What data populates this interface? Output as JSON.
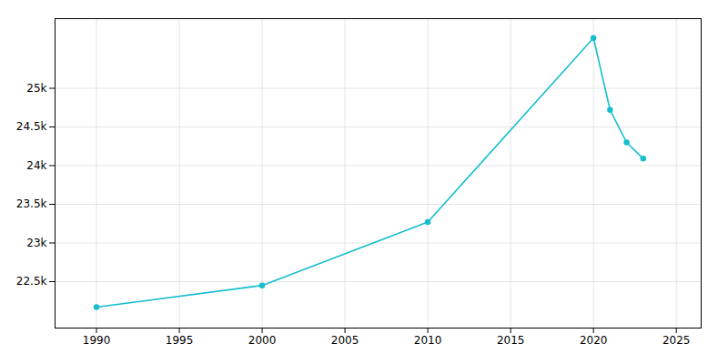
{
  "chart_data": {
    "type": "line",
    "x": [
      1990,
      2000,
      2010,
      2020,
      2021,
      2022,
      2023
    ],
    "values": [
      22170,
      22451,
      23270,
      25650,
      24720,
      24300,
      24090
    ],
    "color": "#17becf",
    "marker": "circle",
    "xlim": [
      1987.5,
      2026.5
    ],
    "ylim": [
      21900,
      25900
    ],
    "xticks": [
      1990,
      1995,
      2000,
      2005,
      2010,
      2015,
      2020,
      2025
    ],
    "yticks": [
      {
        "value": 22500,
        "label": "22.5k"
      },
      {
        "value": 23000,
        "label": "23k"
      },
      {
        "value": 23500,
        "label": "23.5k"
      },
      {
        "value": 24000,
        "label": "24k"
      },
      {
        "value": 24500,
        "label": "24.5k"
      },
      {
        "value": 25000,
        "label": "25k"
      }
    ],
    "grid": true
  }
}
